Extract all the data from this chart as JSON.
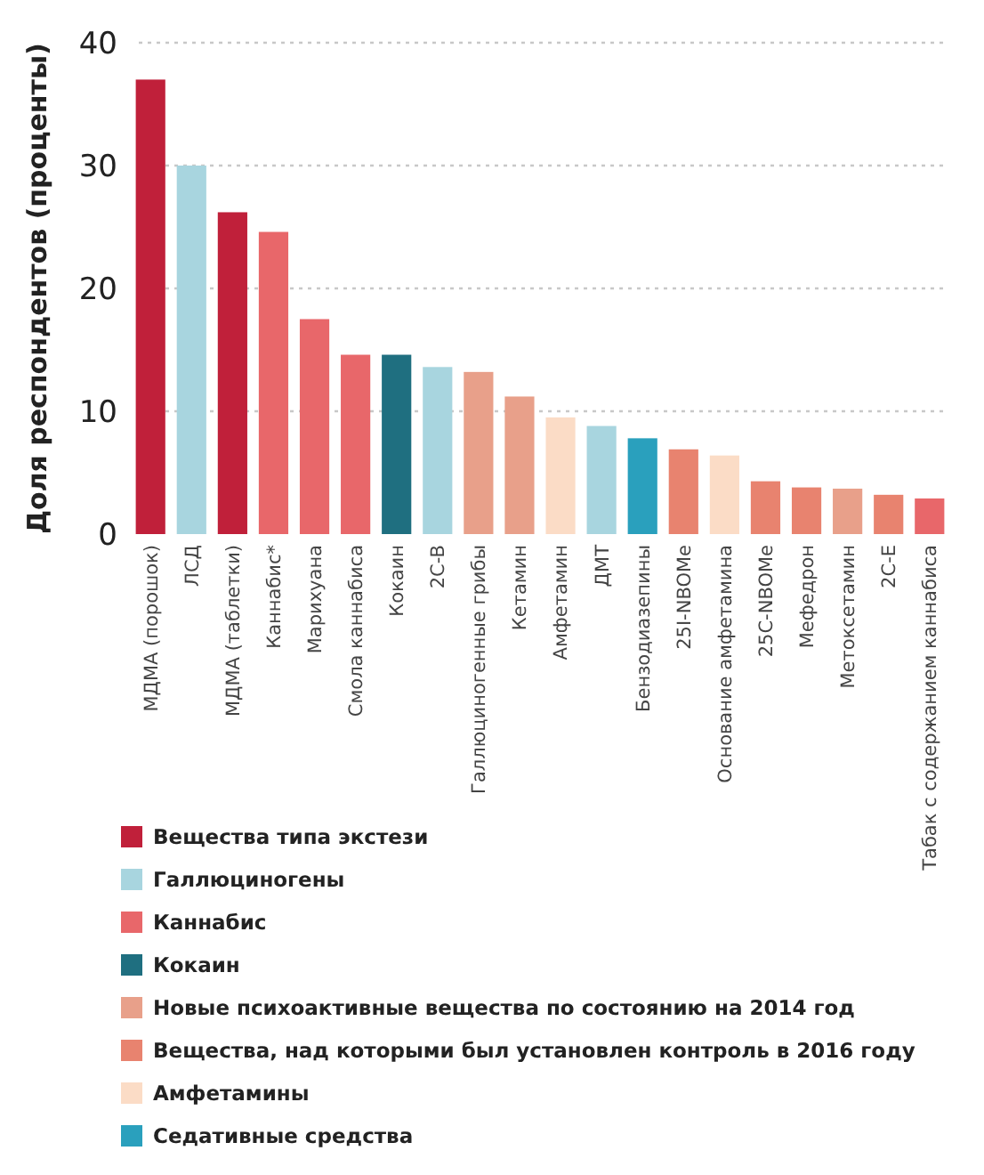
{
  "chart_data": {
    "type": "bar",
    "ylabel": "Доля респондентов (проценты)",
    "categories": [
      "МДМА (порошок)",
      "ЛСД",
      "МДМА (таблетки)",
      "Каннабис*",
      "Марихуана",
      "Смола каннабиса",
      "Кокаин",
      "2C-B",
      "Галлюциногенные грибы",
      "Кетамин",
      "Амфетамин",
      "ДМТ",
      "Бензодиазепины",
      "25I-NBOMe",
      "Основание амфетамина",
      "25C-NBOMe",
      "Мефедрон",
      "Метоксетамин",
      "2C-E",
      "Табак с содержанием каннабиса"
    ],
    "ylim": [
      0,
      40
    ],
    "yticks": [
      0,
      10,
      20,
      30,
      40
    ],
    "grid": "y",
    "legend": "bottom",
    "series": [
      {
        "name": "Вещества типа экстези",
        "color": "#c0203a",
        "values": [
          37,
          null,
          26.2,
          null,
          null,
          null,
          null,
          null,
          null,
          null,
          null,
          null,
          null,
          null,
          null,
          null,
          null,
          null,
          null,
          null
        ]
      },
      {
        "name": "Галлюциногены",
        "color": "#a8d5df",
        "values": [
          null,
          30,
          null,
          null,
          null,
          null,
          null,
          13.6,
          null,
          null,
          null,
          8.8,
          null,
          null,
          null,
          null,
          null,
          null,
          null,
          null
        ]
      },
      {
        "name": "Каннабис",
        "color": "#e8676a",
        "values": [
          null,
          null,
          null,
          24.6,
          17.5,
          14.6,
          null,
          null,
          null,
          null,
          null,
          null,
          null,
          null,
          null,
          null,
          null,
          null,
          null,
          2.9
        ]
      },
      {
        "name": "Кокаин",
        "color": "#1f6f80",
        "values": [
          null,
          null,
          null,
          null,
          null,
          null,
          14.6,
          null,
          null,
          null,
          null,
          null,
          null,
          null,
          null,
          null,
          null,
          null,
          null,
          null
        ]
      },
      {
        "name": "Новые психоактивные вещества по состоянию на 2014 год",
        "color": "#e8a08a",
        "values": [
          null,
          null,
          null,
          null,
          null,
          null,
          null,
          null,
          13.2,
          11.2,
          null,
          null,
          null,
          null,
          null,
          null,
          null,
          3.7,
          null,
          null
        ]
      },
      {
        "name": "Вещества, над которыми был установлен контроль в 2016 году",
        "color": "#e8836f",
        "values": [
          null,
          null,
          null,
          null,
          null,
          null,
          null,
          null,
          null,
          null,
          null,
          null,
          null,
          6.9,
          null,
          4.3,
          3.8,
          null,
          3.2,
          null
        ]
      },
      {
        "name": "Амфетамины",
        "color": "#fbdcc6",
        "values": [
          null,
          null,
          null,
          null,
          null,
          null,
          null,
          null,
          null,
          null,
          9.5,
          null,
          null,
          null,
          6.4,
          null,
          null,
          null,
          null,
          null
        ]
      },
      {
        "name": "Седативные средства",
        "color": "#2aa0bd",
        "values": [
          null,
          null,
          null,
          null,
          null,
          null,
          null,
          null,
          null,
          null,
          null,
          null,
          7.8,
          null,
          null,
          null,
          null,
          null,
          null,
          null
        ]
      }
    ]
  }
}
